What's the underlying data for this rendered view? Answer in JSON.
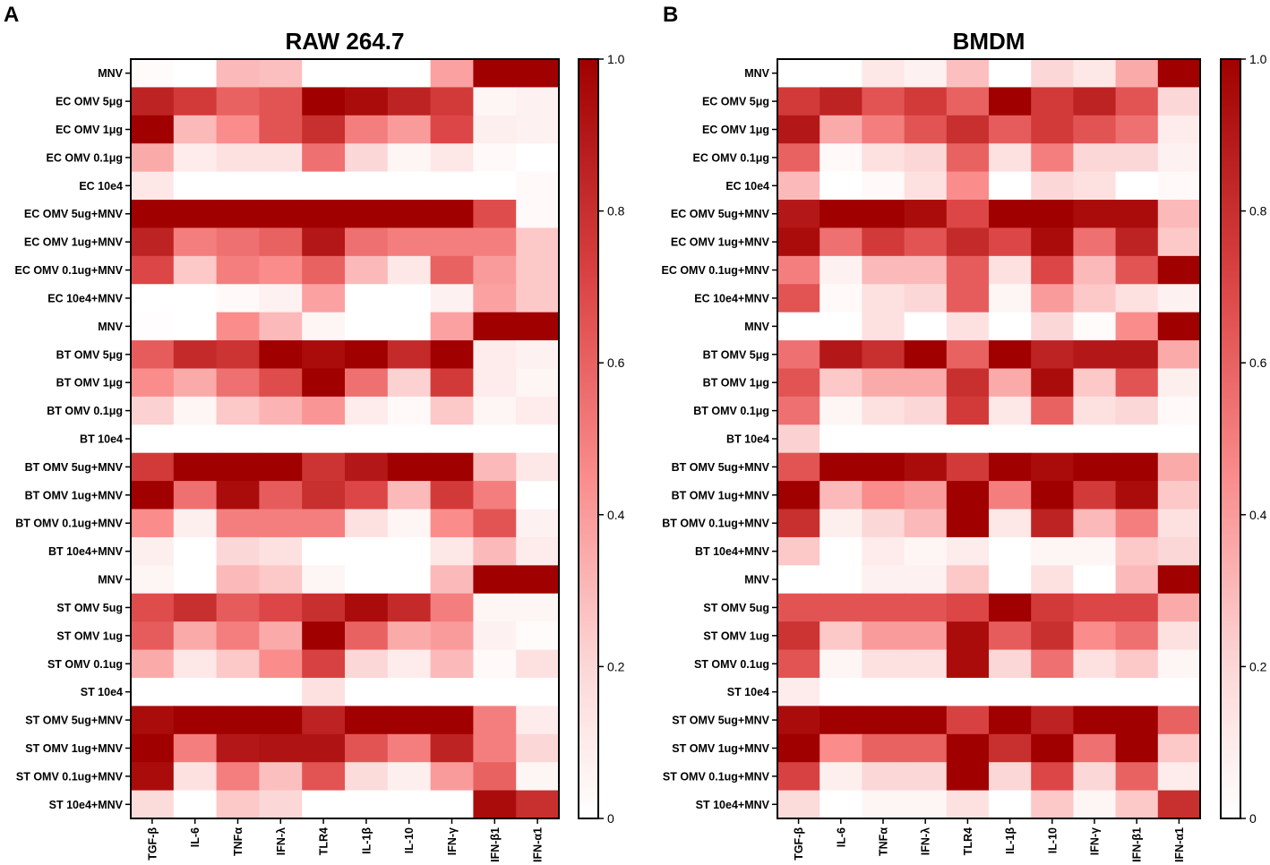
{
  "chart_data": [
    {
      "type": "heatmap",
      "panel": "A",
      "title": "RAW 264.7",
      "columns": [
        "TGF-β",
        "IL-6",
        "TNFα",
        "IFN-λ",
        "TLR4",
        "IL-1β",
        "IL-10",
        "IFN-γ",
        "IFN-β1",
        "IFN-α1"
      ],
      "rows": [
        "MNV",
        "EC OMV 5μg",
        "EC OMV 1μg",
        "EC OMV 0.1μg",
        "EC 10e4",
        "EC OMV 5ug+MNV",
        "EC OMV 1ug+MNV",
        "EC OMV 0.1ug+MNV",
        "EC 10e4+MNV",
        "MNV",
        "BT OMV 5μg",
        "BT OMV 1μg",
        "BT OMV 0.1μg",
        "BT 10e4",
        "BT OMV 5ug+MNV",
        "BT OMV 1ug+MNV",
        "BT OMV 0.1ug+MNV",
        "BT 10e4+MNV",
        "MNV",
        "ST OMV 5ug",
        "ST OMV 1ug",
        "ST OMV 0.1ug",
        "ST 10e4",
        "ST OMV 5ug+MNV",
        "ST OMV 1ug+MNV",
        "ST OMV 0.1ug+MNV",
        "ST 10e4+MNV"
      ],
      "values": [
        [
          0.02,
          0.0,
          0.3,
          0.28,
          0.0,
          0.0,
          0.0,
          0.38,
          1.0,
          1.0
        ],
        [
          0.85,
          0.75,
          0.6,
          0.65,
          1.0,
          0.95,
          0.85,
          0.75,
          0.05,
          0.07
        ],
        [
          1.0,
          0.3,
          0.45,
          0.65,
          0.8,
          0.5,
          0.4,
          0.7,
          0.08,
          0.07
        ],
        [
          0.35,
          0.1,
          0.15,
          0.15,
          0.55,
          0.2,
          0.05,
          0.12,
          0.03,
          0.0
        ],
        [
          0.12,
          0.0,
          0.0,
          0.0,
          0.0,
          0.0,
          0.0,
          0.0,
          0.0,
          0.03
        ],
        [
          1.0,
          1.0,
          1.0,
          1.0,
          1.0,
          1.0,
          1.0,
          1.0,
          0.68,
          0.03
        ],
        [
          0.85,
          0.5,
          0.55,
          0.6,
          0.9,
          0.55,
          0.5,
          0.5,
          0.5,
          0.25
        ],
        [
          0.7,
          0.25,
          0.5,
          0.45,
          0.6,
          0.3,
          0.12,
          0.6,
          0.4,
          0.25
        ],
        [
          0.0,
          0.0,
          0.03,
          0.07,
          0.38,
          0.0,
          0.0,
          0.07,
          0.38,
          0.25
        ],
        [
          0.01,
          0.0,
          0.45,
          0.3,
          0.05,
          0.0,
          0.0,
          0.38,
          1.0,
          1.0
        ],
        [
          0.62,
          0.82,
          0.78,
          1.0,
          0.95,
          1.0,
          0.82,
          1.0,
          0.1,
          0.07
        ],
        [
          0.45,
          0.35,
          0.55,
          0.68,
          1.0,
          0.55,
          0.22,
          0.75,
          0.1,
          0.05
        ],
        [
          0.22,
          0.05,
          0.25,
          0.32,
          0.42,
          0.1,
          0.03,
          0.25,
          0.05,
          0.1
        ],
        [
          0.0,
          0.0,
          0.0,
          0.0,
          0.0,
          0.0,
          0.0,
          0.0,
          0.0,
          0.0
        ],
        [
          0.75,
          1.0,
          1.0,
          1.0,
          0.78,
          0.9,
          1.0,
          1.0,
          0.3,
          0.12
        ],
        [
          1.0,
          0.55,
          0.95,
          0.62,
          0.8,
          0.7,
          0.3,
          0.75,
          0.5,
          0.0
        ],
        [
          0.45,
          0.08,
          0.5,
          0.5,
          0.5,
          0.15,
          0.05,
          0.45,
          0.65,
          0.07
        ],
        [
          0.08,
          0.0,
          0.2,
          0.15,
          0.0,
          0.0,
          0.0,
          0.12,
          0.3,
          0.1
        ],
        [
          0.05,
          0.0,
          0.3,
          0.25,
          0.05,
          0.0,
          0.0,
          0.3,
          1.0,
          1.0
        ],
        [
          0.68,
          0.8,
          0.62,
          0.7,
          0.8,
          0.95,
          0.82,
          0.5,
          0.05,
          0.05
        ],
        [
          0.62,
          0.35,
          0.5,
          0.35,
          1.0,
          0.6,
          0.35,
          0.4,
          0.07,
          0.02
        ],
        [
          0.35,
          0.12,
          0.25,
          0.45,
          0.72,
          0.2,
          0.1,
          0.3,
          0.03,
          0.15
        ],
        [
          0.0,
          0.0,
          0.0,
          0.0,
          0.15,
          0.0,
          0.0,
          0.0,
          0.0,
          0.0
        ],
        [
          0.95,
          1.0,
          1.0,
          1.0,
          0.85,
          1.0,
          1.0,
          1.0,
          0.5,
          0.1
        ],
        [
          1.0,
          0.5,
          0.9,
          0.92,
          0.92,
          0.65,
          0.5,
          0.85,
          0.5,
          0.2
        ],
        [
          0.95,
          0.15,
          0.5,
          0.28,
          0.65,
          0.18,
          0.08,
          0.4,
          0.6,
          0.05
        ],
        [
          0.18,
          0.0,
          0.25,
          0.2,
          0.0,
          0.0,
          0.0,
          0.0,
          0.95,
          0.8
        ]
      ],
      "colorbar": {
        "min": 0,
        "max": 1.0,
        "ticks": [
          "0",
          "0.2",
          "0.4",
          "0.6",
          "0.8",
          "1.0"
        ],
        "low_color": "#ffffff",
        "high_color": "#a00000"
      }
    },
    {
      "type": "heatmap",
      "panel": "B",
      "title": "BMDM",
      "columns": [
        "TGF-β",
        "IL-6",
        "TNFα",
        "IFN-λ",
        "TLR4",
        "IL-1β",
        "IL-10",
        "IFN-γ",
        "IFN-β1",
        "IFN-α1"
      ],
      "rows": [
        "MNV",
        "EC OMV 5μg",
        "EC OMV 1μg",
        "EC OMV 0.1μg",
        "EC 10e4",
        "EC OMV 5ug+MNV",
        "EC OMV 1ug+MNV",
        "EC OMV 0.1ug+MNV",
        "EC 10e4+MNV",
        "MNV",
        "BT OMV 5μg",
        "BT OMV 1μg",
        "BT OMV 0.1μg",
        "BT 10e4",
        "BT OMV 5ug+MNV",
        "BT OMV 1ug+MNV",
        "BT OMV 0.1ug+MNV",
        "BT 10e4+MNV",
        "MNV",
        "ST OMV 5ug",
        "ST OMV 1ug",
        "ST OMV 0.1ug",
        "ST 10e4",
        "ST OMV 5ug+MNV",
        "ST OMV 1ug+MNV",
        "ST OMV 0.1ug+MNV",
        "ST 10e4+MNV"
      ],
      "values": [
        [
          0.0,
          0.0,
          0.12,
          0.07,
          0.28,
          0.0,
          0.2,
          0.12,
          0.35,
          1.0
        ],
        [
          0.75,
          0.85,
          0.65,
          0.75,
          0.6,
          1.0,
          0.75,
          0.85,
          0.65,
          0.2
        ],
        [
          0.9,
          0.35,
          0.5,
          0.65,
          0.8,
          0.62,
          0.75,
          0.65,
          0.55,
          0.1
        ],
        [
          0.6,
          0.03,
          0.15,
          0.2,
          0.6,
          0.15,
          0.5,
          0.2,
          0.2,
          0.07
        ],
        [
          0.3,
          0.0,
          0.03,
          0.15,
          0.45,
          0.0,
          0.2,
          0.15,
          0.0,
          0.03
        ],
        [
          0.9,
          1.0,
          1.0,
          0.95,
          0.7,
          1.0,
          1.0,
          0.95,
          0.95,
          0.3
        ],
        [
          0.95,
          0.55,
          0.75,
          0.65,
          0.82,
          0.7,
          0.95,
          0.55,
          0.85,
          0.25
        ],
        [
          0.5,
          0.07,
          0.3,
          0.3,
          0.62,
          0.15,
          0.7,
          0.3,
          0.65,
          1.0
        ],
        [
          0.65,
          0.03,
          0.15,
          0.2,
          0.62,
          0.05,
          0.4,
          0.25,
          0.15,
          0.07
        ],
        [
          0.0,
          0.0,
          0.15,
          0.0,
          0.15,
          0.0,
          0.2,
          0.02,
          0.45,
          1.0
        ],
        [
          0.55,
          0.9,
          0.8,
          1.0,
          0.6,
          1.0,
          0.85,
          0.9,
          0.9,
          0.35
        ],
        [
          0.65,
          0.25,
          0.35,
          0.35,
          0.8,
          0.35,
          0.95,
          0.25,
          0.65,
          0.08
        ],
        [
          0.55,
          0.05,
          0.15,
          0.2,
          0.75,
          0.12,
          0.6,
          0.15,
          0.2,
          0.03
        ],
        [
          0.22,
          0.0,
          0.0,
          0.0,
          0.0,
          0.0,
          0.0,
          0.0,
          0.0,
          0.0
        ],
        [
          0.65,
          1.0,
          1.0,
          0.95,
          0.75,
          1.0,
          0.95,
          1.0,
          1.0,
          0.35
        ],
        [
          1.0,
          0.3,
          0.45,
          0.4,
          1.0,
          0.5,
          1.0,
          0.75,
          0.95,
          0.25
        ],
        [
          0.8,
          0.08,
          0.2,
          0.3,
          1.0,
          0.12,
          0.85,
          0.3,
          0.5,
          0.15
        ],
        [
          0.25,
          0.0,
          0.1,
          0.05,
          0.1,
          0.0,
          0.05,
          0.05,
          0.25,
          0.2
        ],
        [
          0.0,
          0.0,
          0.07,
          0.07,
          0.25,
          0.0,
          0.15,
          0.0,
          0.3,
          1.0
        ],
        [
          0.65,
          0.65,
          0.65,
          0.65,
          0.7,
          1.0,
          0.75,
          0.7,
          0.7,
          0.35
        ],
        [
          0.78,
          0.25,
          0.4,
          0.4,
          0.95,
          0.62,
          0.8,
          0.45,
          0.55,
          0.15
        ],
        [
          0.65,
          0.05,
          0.15,
          0.15,
          0.95,
          0.2,
          0.55,
          0.15,
          0.25,
          0.05
        ],
        [
          0.1,
          0.0,
          0.0,
          0.0,
          0.0,
          0.0,
          0.0,
          0.0,
          0.0,
          0.0
        ],
        [
          0.95,
          1.0,
          1.0,
          1.0,
          0.72,
          1.0,
          0.85,
          1.0,
          1.0,
          0.6
        ],
        [
          1.0,
          0.45,
          0.6,
          0.6,
          1.0,
          0.8,
          1.0,
          0.55,
          1.0,
          0.25
        ],
        [
          0.72,
          0.08,
          0.2,
          0.2,
          1.0,
          0.2,
          0.7,
          0.2,
          0.6,
          0.1
        ],
        [
          0.18,
          0.0,
          0.05,
          0.05,
          0.15,
          0.0,
          0.25,
          0.05,
          0.25,
          0.8
        ]
      ],
      "colorbar": {
        "min": 0,
        "max": 1.0,
        "ticks": [
          "0",
          "0.2",
          "0.4",
          "0.6",
          "0.8",
          "1.0"
        ],
        "low_color": "#ffffff",
        "high_color": "#a00000"
      }
    }
  ]
}
